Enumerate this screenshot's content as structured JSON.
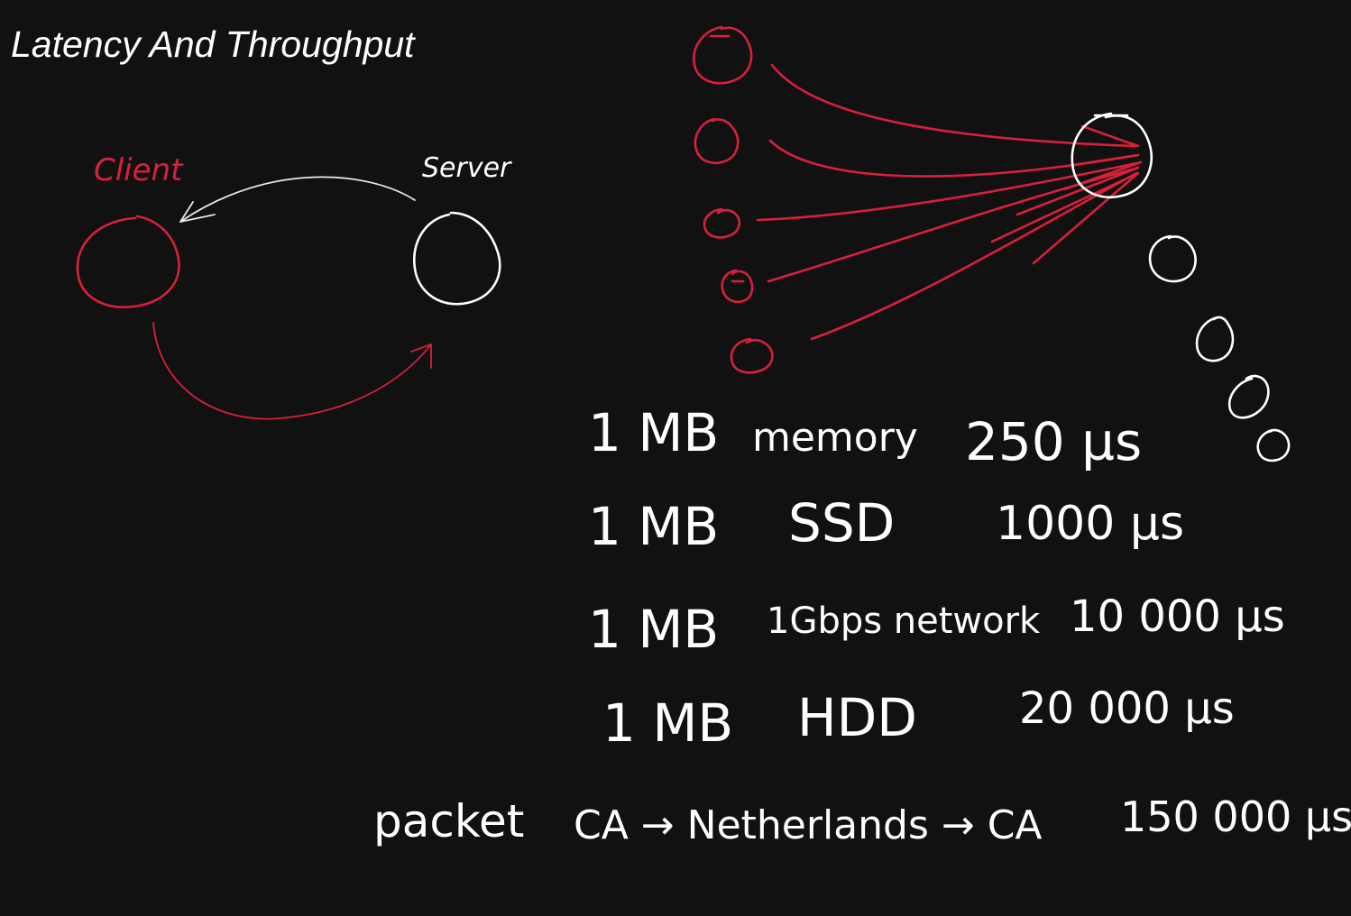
{
  "title": "Latency And Throughput",
  "colors": {
    "background": "#111112",
    "white_ink": "#ffffff",
    "red_ink": "#d8203a"
  },
  "client_label": "Client",
  "server_label": "Server",
  "latency_table": [
    {
      "size": "1 MB",
      "medium": "memory",
      "time": "250 µs"
    },
    {
      "size": "1 MB",
      "medium": "SSD",
      "time": "1000 µs"
    },
    {
      "size": "1 MB",
      "medium": "1Gbps network",
      "time": "10 000 µs"
    },
    {
      "size": "1 MB",
      "medium": "HDD",
      "time": "20 000 µs"
    }
  ],
  "packet_row": {
    "label": "packet",
    "route": "CA → Netherlands → CA",
    "time": "150 000 µs"
  }
}
